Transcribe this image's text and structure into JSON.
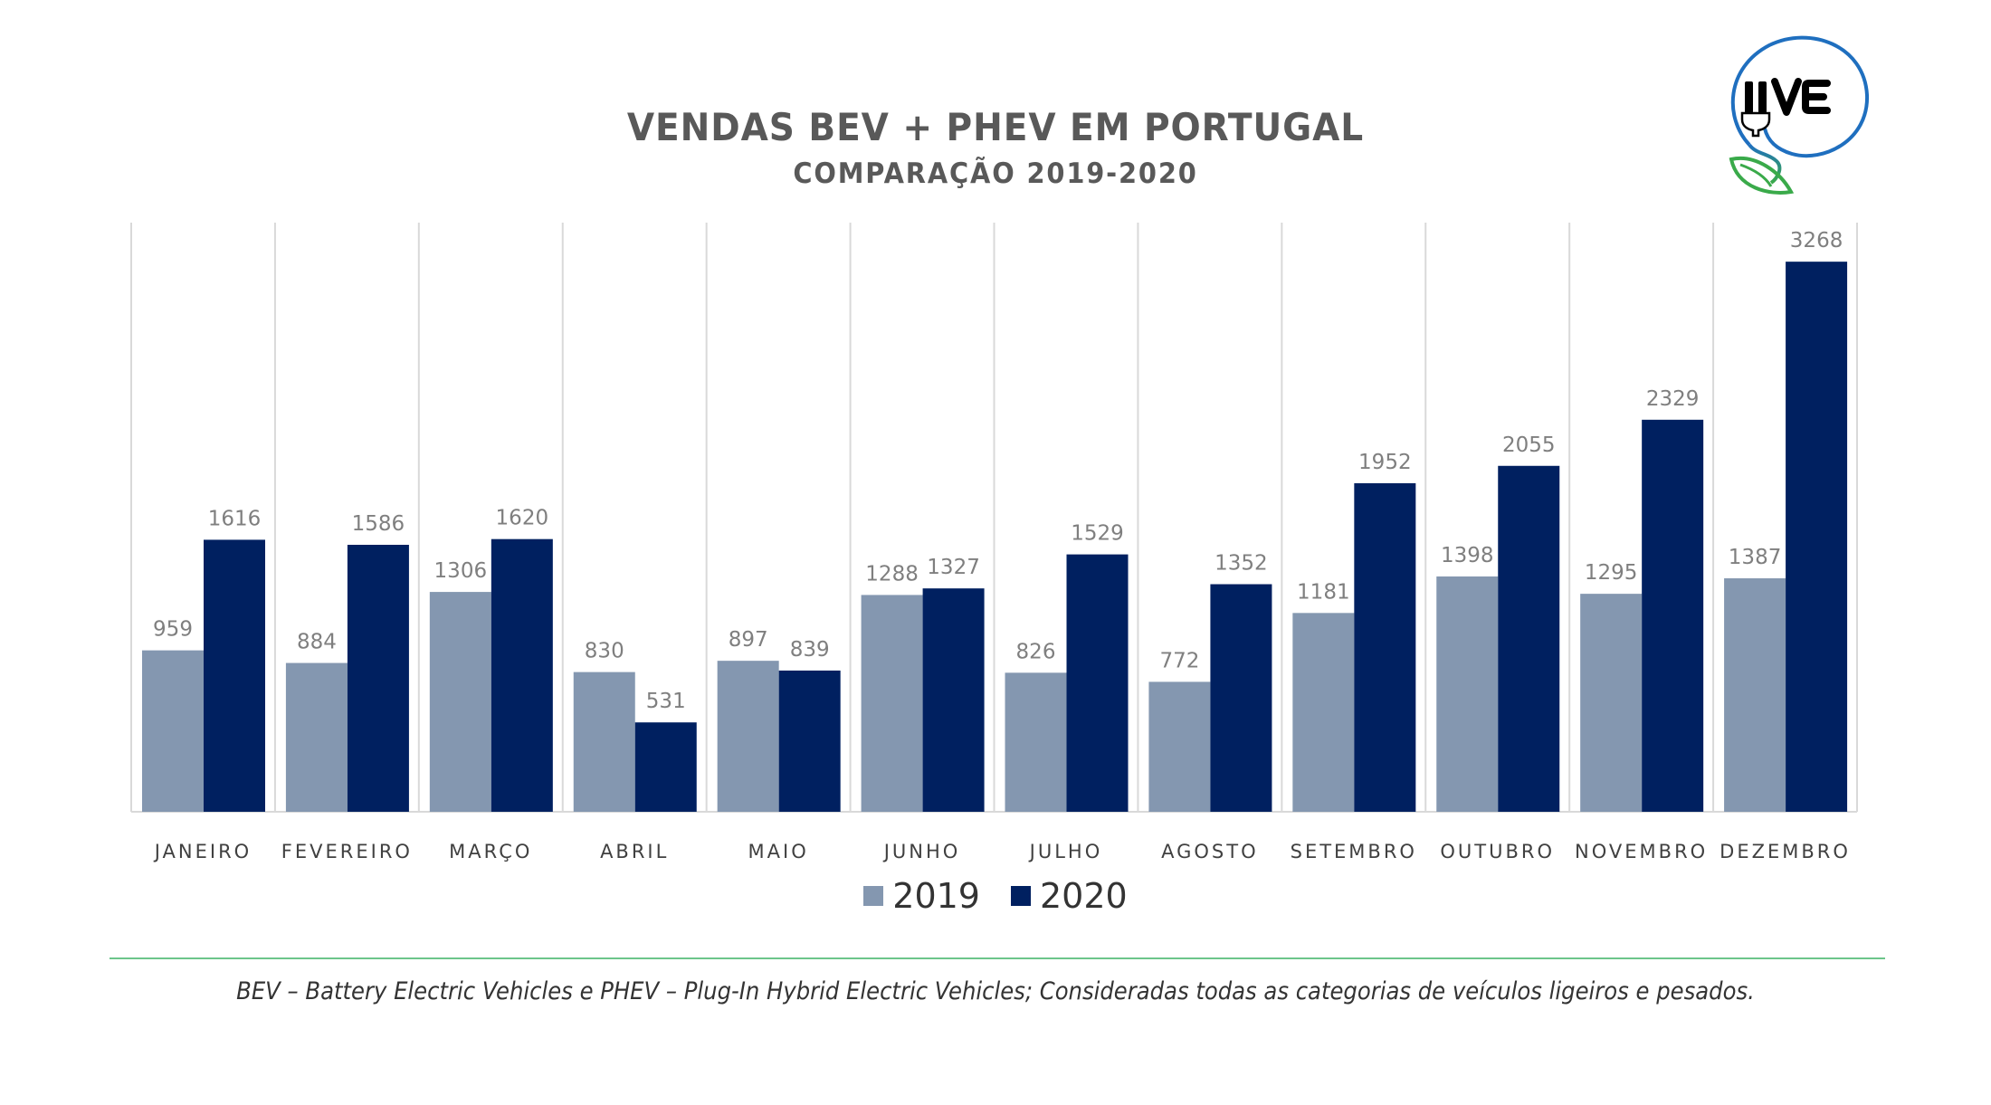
{
  "header": {
    "title": "VENDAS BEV + PHEV EM PORTUGAL",
    "subtitle": "COMPARAÇÃO 2019-2020"
  },
  "logo": {
    "text": "UVE",
    "icon": "plug-leaf-logo-icon",
    "colors": {
      "ring": "#1f6fbf",
      "leaf": "#3aaa4a",
      "text": "#000000"
    }
  },
  "chart_data": {
    "type": "bar",
    "title": "VENDAS BEV + PHEV EM PORTUGAL",
    "subtitle": "COMPARAÇÃO 2019-2020",
    "xlabel": "",
    "ylabel": "",
    "ylim": [
      0,
      3500
    ],
    "grid": "vertical category separators",
    "legend_position": "bottom",
    "categories": [
      "JANEIRO",
      "FEVEREIRO",
      "MARÇO",
      "ABRIL",
      "MAIO",
      "JUNHO",
      "JULHO",
      "AGOSTO",
      "SETEMBRO",
      "OUTUBRO",
      "NOVEMBRO",
      "DEZEMBRO"
    ],
    "series": [
      {
        "name": "2019",
        "color": "#8497b0",
        "values": [
          959,
          884,
          1306,
          830,
          897,
          1288,
          826,
          772,
          1181,
          1398,
          1295,
          1387
        ]
      },
      {
        "name": "2020",
        "color": "#002060",
        "values": [
          1616,
          1586,
          1620,
          531,
          839,
          1327,
          1529,
          1352,
          1952,
          2055,
          2329,
          3268
        ]
      }
    ]
  },
  "footer": {
    "note": "BEV – Battery Electric Vehicles e PHEV – Plug-In Hybrid Electric Vehicles; Consideradas todas as categorias de veículos ligeiros e pesados.",
    "divider_color": "#6cc58a"
  }
}
